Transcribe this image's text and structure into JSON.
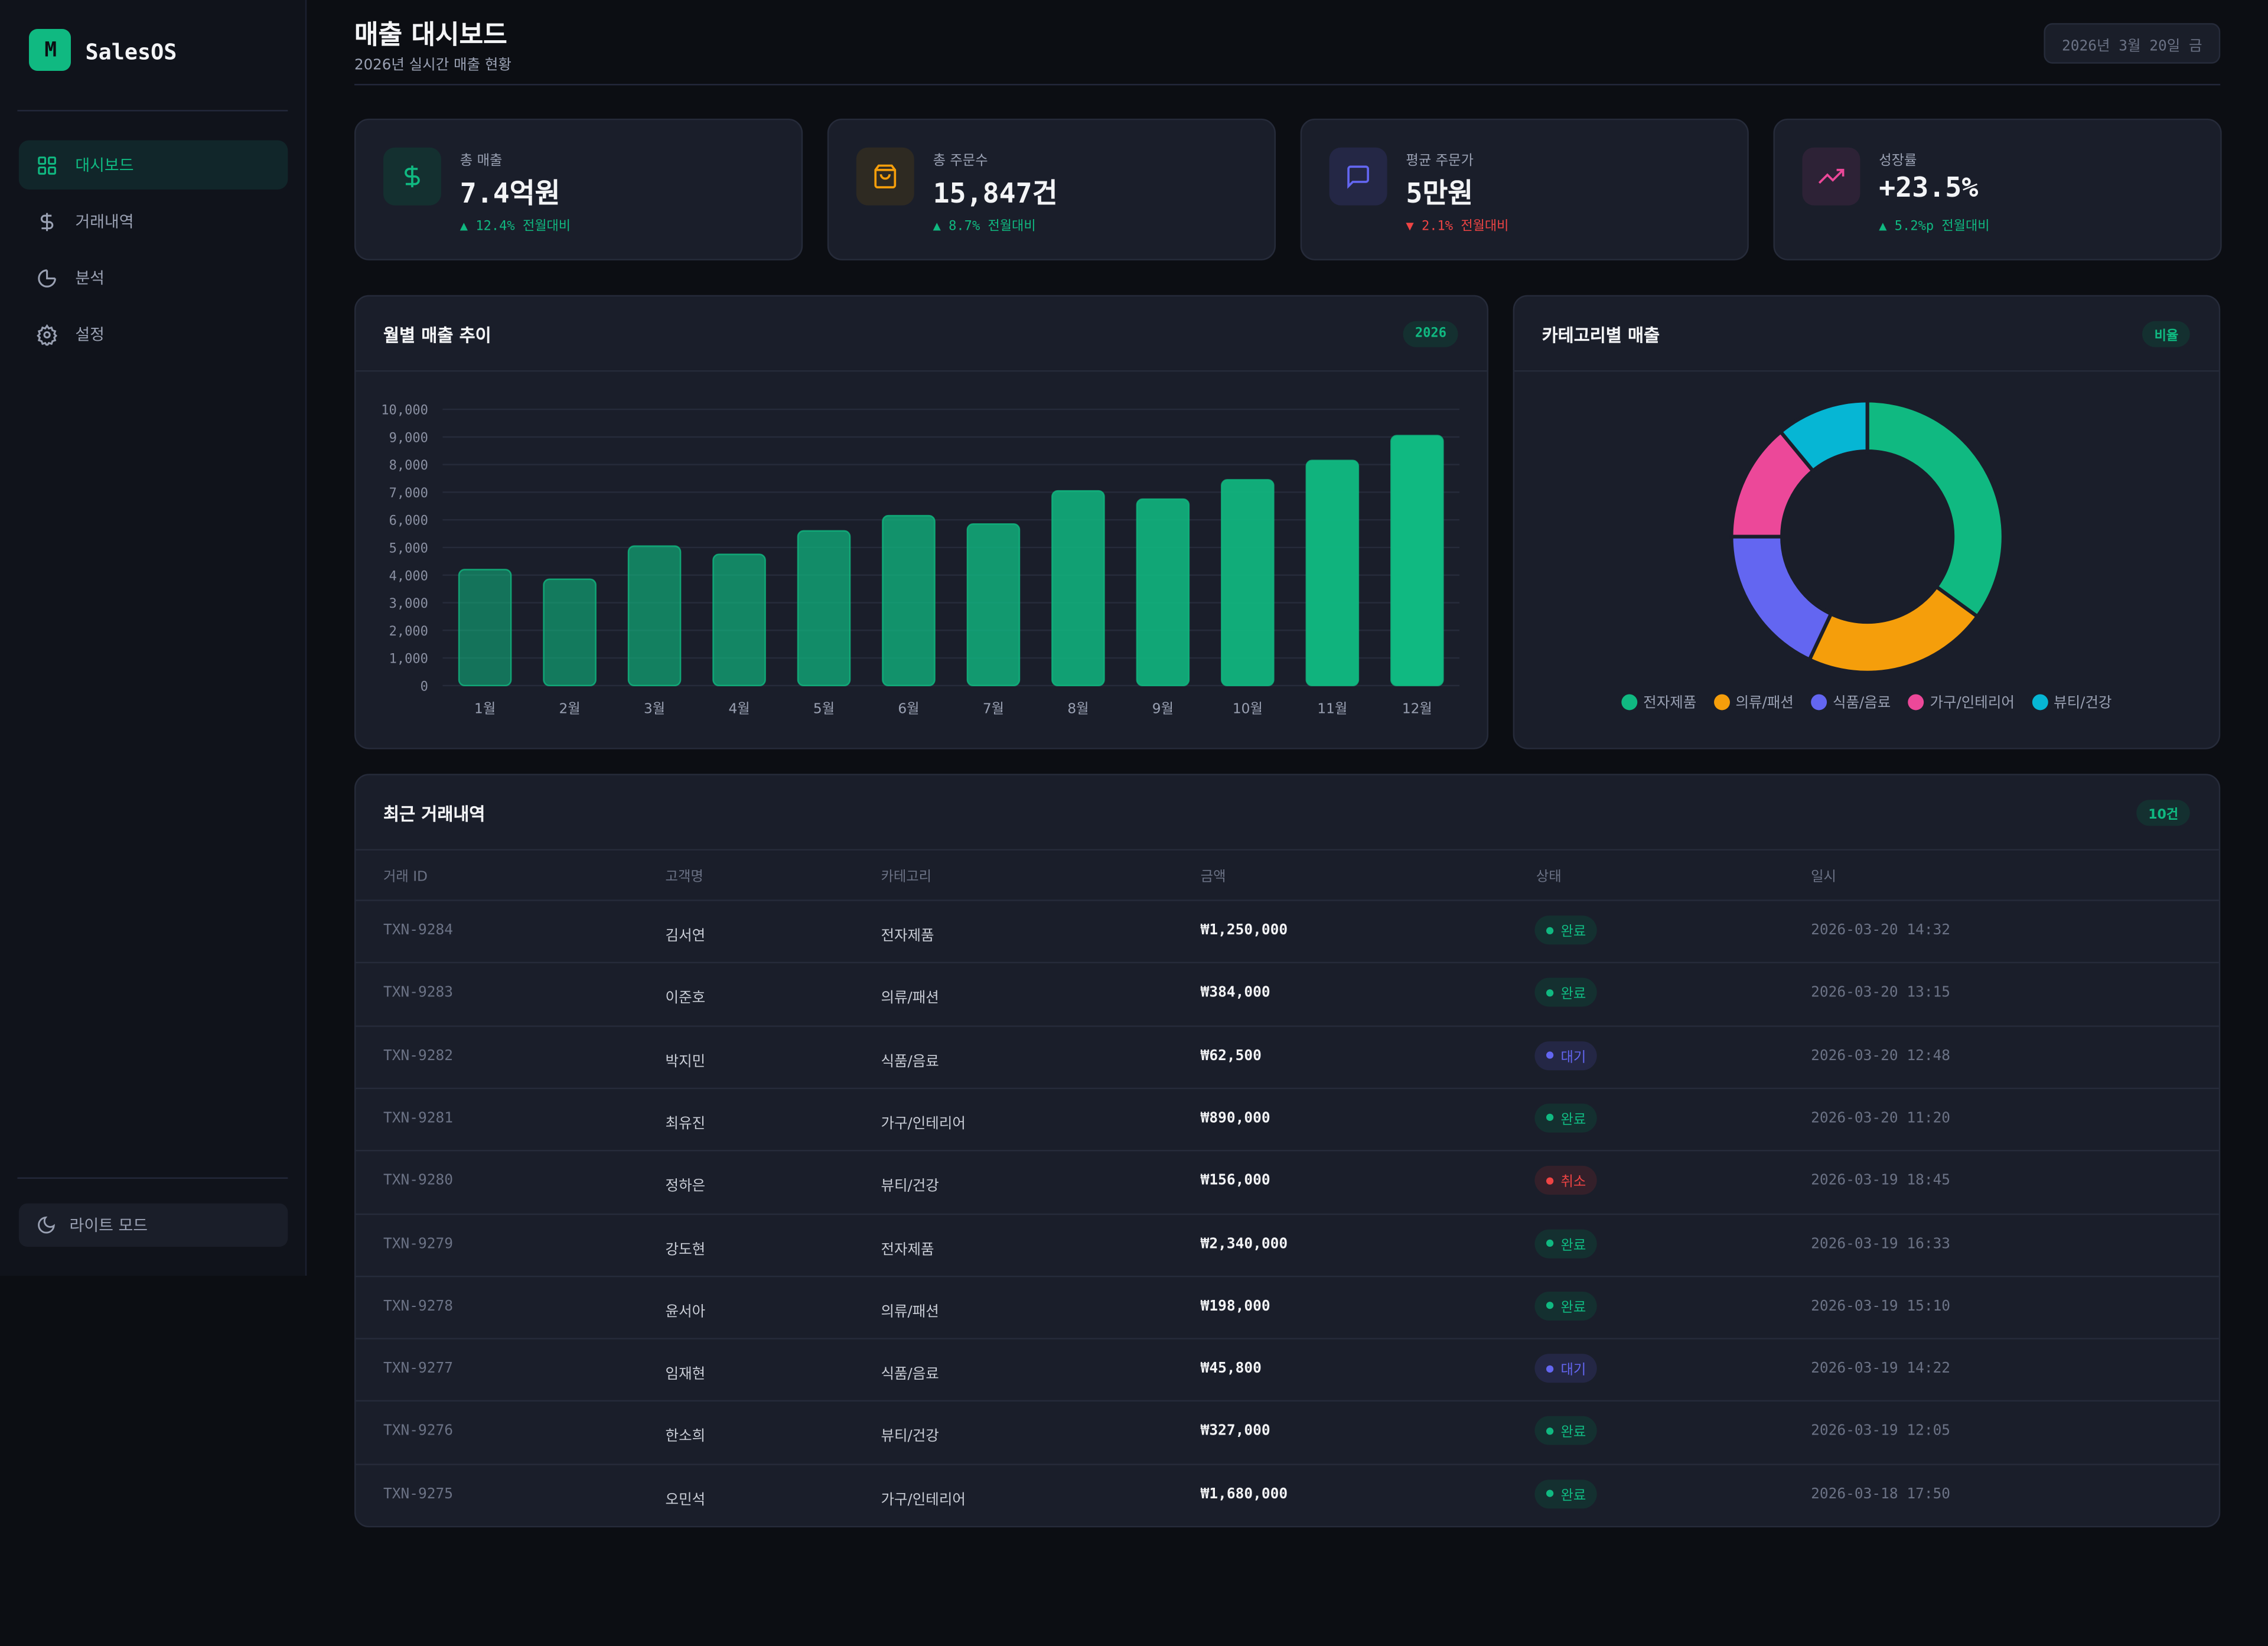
{
  "app": {
    "brand": "SalesOS",
    "logo_text": "M"
  },
  "sidebar": {
    "items": [
      {
        "label": "대시보드",
        "icon": "grid-icon",
        "active": true
      },
      {
        "label": "거래내역",
        "icon": "dollar-icon"
      },
      {
        "label": "분석",
        "icon": "pie-chart-icon"
      },
      {
        "label": "설정",
        "icon": "gear-icon"
      }
    ],
    "light_mode": "라이트 모드"
  },
  "header": {
    "title": "매출 대시보드",
    "subtitle": "2026년 실시간 매출 현황",
    "date": "2026년 3월 20일 금"
  },
  "kpis": [
    {
      "label": "총 매출",
      "value": "7.4억원",
      "delta": "▲ 12.4% 전월대비",
      "trend": "up",
      "icon": "dollar-icon",
      "color": "#10b981"
    },
    {
      "label": "총 주문수",
      "value": "15,847건",
      "delta": "▲ 8.7% 전월대비",
      "trend": "up",
      "icon": "shopping-bag-icon",
      "color": "#f59e0b"
    },
    {
      "label": "평균 주문가",
      "value": "5만원",
      "delta": "▼ 2.1% 전월대비",
      "trend": "down",
      "icon": "message-icon",
      "color": "#6366f1"
    },
    {
      "label": "성장률",
      "value": "+23.5%",
      "delta": "▲ 5.2%p 전월대비",
      "trend": "up",
      "icon": "trending-up-icon",
      "color": "#ec4899"
    }
  ],
  "colors": {
    "up": "#10b981",
    "down": "#ef4444",
    "accent": "#10b981"
  },
  "chart_data": [
    {
      "type": "bar",
      "title": "월별 매출 추이",
      "badge": "2026",
      "categories": [
        "1월",
        "2월",
        "3월",
        "4월",
        "5월",
        "6월",
        "7월",
        "8월",
        "9월",
        "10월",
        "11월",
        "12월"
      ],
      "values": [
        4200,
        3850,
        5050,
        4750,
        5600,
        6150,
        5850,
        7050,
        6750,
        7450,
        8150,
        9050
      ],
      "ylim": [
        0,
        10000
      ],
      "yticks": [
        "0",
        "1,000",
        "2,000",
        "3,000",
        "4,000",
        "5,000",
        "6,000",
        "7,000",
        "8,000",
        "9,000",
        "10,000"
      ],
      "grid": true
    },
    {
      "type": "pie",
      "donut": true,
      "title": "카테고리별 매출",
      "badge": "비율",
      "categories": [
        "전자제품",
        "의류/패션",
        "식품/음료",
        "가구/인테리어",
        "뷰티/건강"
      ],
      "values": [
        35,
        22,
        18,
        14,
        11
      ],
      "colors": [
        "#10b981",
        "#f59e0b",
        "#6366f1",
        "#ec4899",
        "#06b6d4"
      ],
      "legend": "bottom"
    }
  ],
  "table": {
    "title": "최근 거래내역",
    "count": "10건",
    "columns": [
      "거래 ID",
      "고객명",
      "카테고리",
      "금액",
      "상태",
      "일시"
    ],
    "rows": [
      [
        "TXN-9284",
        "김서연",
        "전자제품",
        "₩1,250,000",
        "완료",
        "2026-03-20 14:32"
      ],
      [
        "TXN-9283",
        "이준호",
        "의류/패션",
        "₩384,000",
        "완료",
        "2026-03-20 13:15"
      ],
      [
        "TXN-9282",
        "박지민",
        "식품/음료",
        "₩62,500",
        "대기",
        "2026-03-20 12:48"
      ],
      [
        "TXN-9281",
        "최유진",
        "가구/인테리어",
        "₩890,000",
        "완료",
        "2026-03-20 11:20"
      ],
      [
        "TXN-9280",
        "정하은",
        "뷰티/건강",
        "₩156,000",
        "취소",
        "2026-03-19 18:45"
      ],
      [
        "TXN-9279",
        "강도현",
        "전자제품",
        "₩2,340,000",
        "완료",
        "2026-03-19 16:33"
      ],
      [
        "TXN-9278",
        "윤서아",
        "의류/패션",
        "₩198,000",
        "완료",
        "2026-03-19 15:10"
      ],
      [
        "TXN-9277",
        "임재현",
        "식품/음료",
        "₩45,800",
        "대기",
        "2026-03-19 14:22"
      ],
      [
        "TXN-9276",
        "한소희",
        "뷰티/건강",
        "₩327,000",
        "완료",
        "2026-03-19 12:05"
      ],
      [
        "TXN-9275",
        "오민석",
        "가구/인테리어",
        "₩1,680,000",
        "완료",
        "2026-03-18 17:50"
      ]
    ],
    "status_colors": {
      "완료": "#10b981",
      "대기": "#6366f1",
      "취소": "#ef4444"
    }
  }
}
